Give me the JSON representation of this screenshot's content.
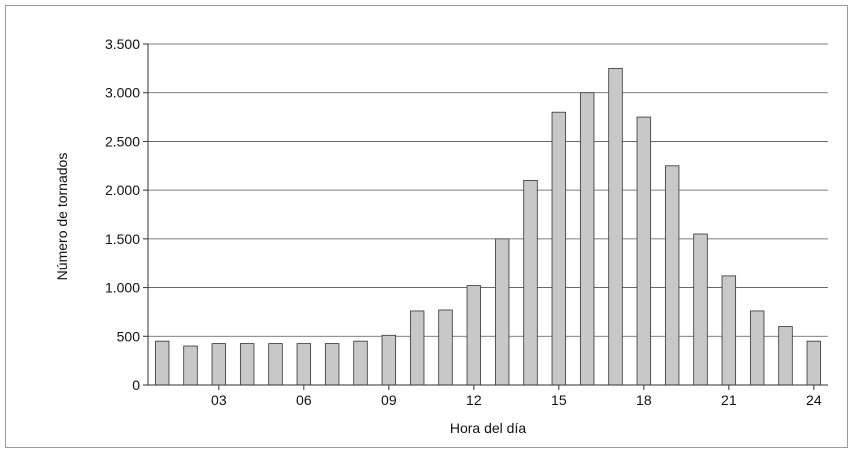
{
  "chart_data": {
    "type": "bar",
    "title": "",
    "xlabel": "Hora del día",
    "ylabel": "Número de tornados",
    "x": [
      1,
      2,
      3,
      4,
      5,
      6,
      7,
      8,
      9,
      10,
      11,
      12,
      13,
      14,
      15,
      16,
      17,
      18,
      19,
      20,
      21,
      22,
      23,
      24
    ],
    "values": [
      450,
      400,
      425,
      425,
      425,
      425,
      425,
      450,
      510,
      760,
      770,
      1020,
      1500,
      2100,
      2800,
      3000,
      3250,
      2750,
      2250,
      1550,
      1120,
      760,
      600,
      450
    ],
    "x_tick_labels": [
      "03",
      "06",
      "09",
      "12",
      "15",
      "18",
      "21",
      "24"
    ],
    "x_tick_positions": [
      3,
      6,
      9,
      12,
      15,
      18,
      21,
      24
    ],
    "y_tick_labels": [
      "0",
      "500",
      "1.000",
      "1.500",
      "2.000",
      "2.500",
      "3.000",
      "3.500"
    ],
    "y_tick_values": [
      0,
      500,
      1000,
      1500,
      2000,
      2500,
      3000,
      3500
    ],
    "ylim": [
      0,
      3500
    ],
    "grid": true,
    "bar_color": "#c8c8c8",
    "bar_edge_color": "#333333"
  }
}
